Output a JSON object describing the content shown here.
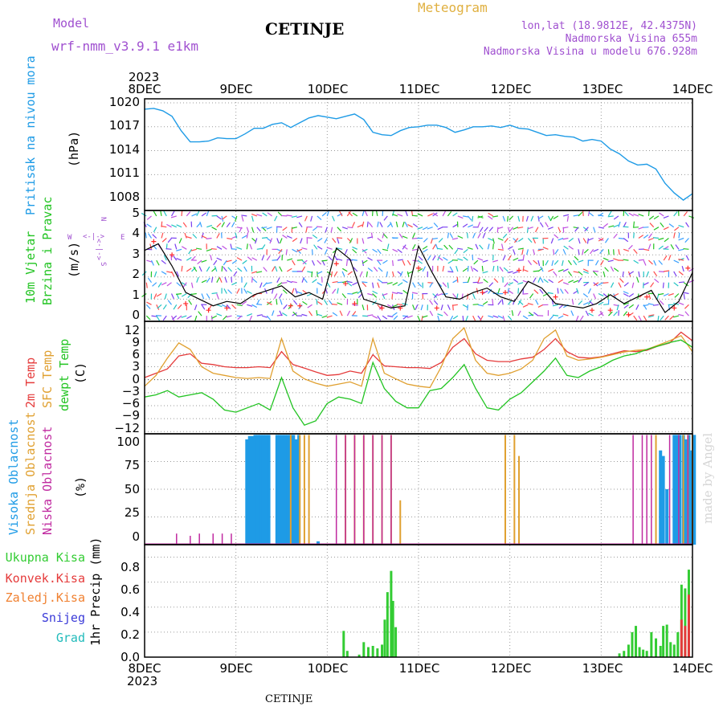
{
  "header": {
    "model_label": "Model",
    "model_name": "wrf-nmm_v3.9.1  e1km",
    "station": "CETINJE",
    "product": "Meteogram",
    "lonlat": "lon,lat (18.9812E, 42.4375N)",
    "altitude": "Nadmorska Visina 655m",
    "altitude_model": "Nadmorska Visina u modelu 676.928m",
    "footer_station": "CETINJE",
    "credit": "made by Angel"
  },
  "colors": {
    "pressure": "#1e9be6",
    "wind_speed": "#000000",
    "gust": "#ff2a2a",
    "temp2m": "#e53b3b",
    "sfc_temp": "#e0a030",
    "dewpoint": "#22c422",
    "cloud_high": "#1e9be6",
    "cloud_mid": "#e0a030",
    "cloud_low": "#c02aa0",
    "precip_total": "#33cc33",
    "precip_conv": "#e53b3b",
    "precip_frz": "#f08030",
    "precip_snow": "#3a3ad8",
    "precip_grad": "#22bbbb",
    "grid": "#9a9a9a",
    "label_purple": "#a050d0",
    "label_orange": "#e0b040"
  },
  "axes": {
    "year": "2023",
    "dates": [
      "8DEC",
      "9DEC",
      "10DEC",
      "11DEC",
      "12DEC",
      "13DEC",
      "14DEC"
    ]
  },
  "panels": {
    "pressure": {
      "label": "Pritisak na nivou mora",
      "unit": "(hPa)",
      "ticks": [
        "1020",
        "1017",
        "1014",
        "1011",
        "1008"
      ]
    },
    "wind": {
      "label1": "10m Vjetar",
      "label2": "Brzina i Pravac",
      "unit": "(m/s)",
      "ticks": [
        "5",
        "4",
        "3",
        "2",
        "1",
        "0"
      ],
      "compass_w": "W",
      "compass_e": "E",
      "compass_n": "N",
      "compass_s": "S",
      "compass_arrows": "<-|->"
    },
    "temp": {
      "label1": "2m Temp",
      "label2": "SFC Temp",
      "label3": "dewpt Temp",
      "unit": "(C)",
      "ticks": [
        "12",
        "9",
        "6",
        "3",
        "0",
        "−3",
        "−6",
        "−9",
        "−12"
      ]
    },
    "cloud": {
      "label1": "Visoka Oblacnost",
      "label2": "Srednja Oblacnost",
      "label3": "Niska Oblacnost",
      "unit": "(%)",
      "ticks": [
        "100",
        "75",
        "50",
        "25",
        "0"
      ]
    },
    "precip": {
      "legend": [
        "Ukupna Kisa",
        "Konvek.Kisa",
        "Zaledj.Kisa",
        "Snijeg",
        "Grad"
      ],
      "unit": "1hr Precip (mm)",
      "ticks": [
        "0.8",
        "0.6",
        "0.4",
        "0.2",
        "0.0"
      ]
    }
  },
  "chart_data": [
    {
      "type": "line",
      "name": "Pritisak na nivou mora",
      "ylabel": "(hPa)",
      "ylim": [
        1006.5,
        1020.5
      ],
      "x_unit": "days from 8DEC 00h",
      "x": [
        0,
        0.1,
        0.2,
        0.3,
        0.4,
        0.5,
        0.6,
        0.7,
        0.8,
        0.9,
        1.0,
        1.1,
        1.2,
        1.3,
        1.4,
        1.5,
        1.6,
        1.7,
        1.8,
        1.9,
        2.0,
        2.1,
        2.2,
        2.3,
        2.4,
        2.5,
        2.6,
        2.7,
        2.8,
        2.9,
        3.0,
        3.1,
        3.2,
        3.3,
        3.4,
        3.5,
        3.6,
        3.7,
        3.8,
        3.9,
        4.0,
        4.1,
        4.2,
        4.3,
        4.4,
        4.5,
        4.6,
        4.7,
        4.8,
        4.9,
        5.0,
        5.1,
        5.2,
        5.3,
        5.4,
        5.5,
        5.6,
        5.7,
        5.8,
        5.9,
        6.0
      ],
      "values": [
        1019.2,
        1019.3,
        1019.0,
        1018.3,
        1016.5,
        1015.1,
        1015.1,
        1015.2,
        1015.6,
        1015.5,
        1015.5,
        1016.1,
        1016.8,
        1016.8,
        1017.3,
        1017.5,
        1016.9,
        1017.5,
        1018.1,
        1018.4,
        1018.2,
        1018.0,
        1018.3,
        1018.6,
        1017.9,
        1016.3,
        1016.0,
        1015.9,
        1016.5,
        1016.9,
        1017.0,
        1017.2,
        1017.2,
        1016.9,
        1016.3,
        1016.6,
        1017.0,
        1017.0,
        1017.1,
        1016.9,
        1017.2,
        1016.8,
        1016.7,
        1016.3,
        1015.9,
        1016.0,
        1015.8,
        1015.7,
        1015.2,
        1015.4,
        1015.2,
        1014.2,
        1013.6,
        1012.7,
        1012.2,
        1012.3,
        1011.7,
        1009.9,
        1008.7,
        1007.8,
        1008.6
      ]
    },
    {
      "type": "line",
      "name": "10m Vjetar Brzina",
      "ylabel": "(m/s)",
      "ylim": [
        0,
        5
      ],
      "series": [
        {
          "name": "speed",
          "x": [
            0,
            0.15,
            0.3,
            0.45,
            0.6,
            0.75,
            0.9,
            1.05,
            1.2,
            1.35,
            1.5,
            1.65,
            1.8,
            1.95,
            2.1,
            2.25,
            2.4,
            2.55,
            2.7,
            2.85,
            3.0,
            3.15,
            3.3,
            3.45,
            3.6,
            3.75,
            3.9,
            4.05,
            4.2,
            4.35,
            4.5,
            4.65,
            4.8,
            4.95,
            5.1,
            5.25,
            5.4,
            5.55,
            5.7,
            5.85,
            6.0
          ],
          "values": [
            3.2,
            3.5,
            2.5,
            1.3,
            1.0,
            0.7,
            0.9,
            0.8,
            1.2,
            1.4,
            1.6,
            1.1,
            1.3,
            1.0,
            3.3,
            2.8,
            1.0,
            0.8,
            0.6,
            0.7,
            3.4,
            2.2,
            1.1,
            1.0,
            1.3,
            1.5,
            1.1,
            0.9,
            1.8,
            1.5,
            0.8,
            0.7,
            0.6,
            0.8,
            1.2,
            0.8,
            1.1,
            1.4,
            0.4,
            0.9,
            2.2
          ]
        },
        {
          "name": "gust",
          "x": [
            0.1,
            0.3,
            0.45,
            0.7,
            0.9,
            1.6,
            1.7,
            2.1,
            2.2,
            2.3,
            2.6,
            2.8,
            3.0,
            3.2,
            3.7,
            3.95,
            4.1,
            4.5,
            4.9,
            5.1,
            5.3,
            5.5,
            5.8,
            5.95
          ],
          "values": [
            3.6,
            3.0,
            0.8,
            0.5,
            0.6,
            0.7,
            0.7,
            2.6,
            1.7,
            0.8,
            0.6,
            0.6,
            2.4,
            0.6,
            1.3,
            1.3,
            2.3,
            1.1,
            0.5,
            0.5,
            0.3,
            1.1,
            0.6,
            2.4
          ]
        }
      ]
    },
    {
      "type": "line",
      "name": "Temperatura",
      "ylabel": "(C)",
      "ylim": [
        -12.5,
        13.5
      ],
      "x_unit": "days from 8DEC 00h",
      "x": [
        0,
        0.125,
        0.25,
        0.375,
        0.5,
        0.625,
        0.75,
        0.875,
        1.0,
        1.125,
        1.25,
        1.375,
        1.5,
        1.625,
        1.75,
        1.875,
        2.0,
        2.125,
        2.25,
        2.375,
        2.5,
        2.625,
        2.75,
        2.875,
        3.0,
        3.125,
        3.25,
        3.375,
        3.5,
        3.625,
        3.75,
        3.875,
        4.0,
        4.125,
        4.25,
        4.375,
        4.5,
        4.625,
        4.75,
        4.875,
        5.0,
        5.125,
        5.25,
        5.375,
        5.5,
        5.625,
        5.75,
        5.875,
        6.0
      ],
      "series": [
        {
          "name": "2m Temp",
          "values": [
            0.5,
            1.5,
            2.5,
            5.5,
            6.0,
            3.8,
            3.5,
            3.0,
            2.8,
            2.8,
            3.0,
            2.8,
            6.5,
            3.5,
            2.7,
            1.8,
            1.0,
            1.2,
            2.0,
            1.5,
            5.8,
            3.2,
            3.0,
            2.8,
            2.8,
            2.6,
            4.0,
            7.5,
            9.5,
            6.0,
            4.5,
            4.2,
            4.2,
            4.8,
            5.2,
            7.0,
            9.5,
            6.5,
            5.2,
            5.0,
            5.3,
            6.0,
            6.7,
            6.5,
            6.8,
            7.8,
            8.5,
            11.0,
            9.0
          ]
        },
        {
          "name": "SFC Temp",
          "values": [
            -1.5,
            1.0,
            5.0,
            8.5,
            7.0,
            3.0,
            1.5,
            1.0,
            0.5,
            0.3,
            0.5,
            0.3,
            9.5,
            2.0,
            0.2,
            -0.8,
            -1.5,
            -1.0,
            -0.5,
            -1.5,
            9.5,
            1.5,
            0.2,
            -1.0,
            -1.5,
            -1.8,
            3.0,
            9.5,
            12.0,
            4.5,
            1.5,
            1.0,
            1.5,
            2.5,
            4.5,
            9.5,
            11.5,
            5.5,
            4.5,
            4.8,
            5.2,
            5.8,
            6.4,
            6.8,
            7.0,
            8.0,
            9.0,
            10.2,
            6.5
          ]
        },
        {
          "name": "dewpt Temp",
          "values": [
            -4.0,
            -3.5,
            -2.5,
            -4.0,
            -3.5,
            -3.0,
            -4.5,
            -7.0,
            -7.5,
            -6.5,
            -5.5,
            -7.0,
            0.5,
            -6.5,
            -10.5,
            -9.5,
            -5.5,
            -4.0,
            -4.5,
            -5.5,
            4.0,
            -2.0,
            -5.0,
            -6.5,
            -6.5,
            -2.5,
            -2.0,
            0.5,
            3.5,
            -2.0,
            -6.5,
            -7.0,
            -4.5,
            -3.0,
            -0.5,
            2.0,
            5.0,
            1.0,
            0.5,
            2.0,
            3.0,
            4.5,
            5.5,
            6.0,
            7.0,
            7.8,
            8.6,
            9.2,
            7.5
          ]
        }
      ]
    },
    {
      "type": "bar",
      "name": "Oblacnost",
      "ylabel": "(%)",
      "ylim": [
        0,
        100
      ],
      "series": [
        {
          "name": "Visoka Oblacnost",
          "x": [
            1.12,
            1.15,
            1.18,
            1.21,
            1.24,
            1.27,
            1.3,
            1.33,
            1.36,
            1.45,
            1.48,
            1.51,
            1.54,
            1.57,
            1.6,
            1.63,
            1.66,
            1.69,
            1.9,
            5.65,
            5.68,
            5.72,
            5.8,
            5.83,
            5.86,
            5.9,
            5.93,
            5.96,
            5.99,
            6.02
          ],
          "values": [
            95,
            98,
            98,
            99,
            99,
            99,
            99,
            99,
            99,
            99,
            99,
            99,
            99,
            99,
            99,
            99,
            95,
            99,
            3,
            85,
            80,
            50,
            99,
            99,
            99,
            99,
            95,
            99,
            85,
            99
          ]
        },
        {
          "name": "Srednja Oblacnost",
          "x": [
            1.6,
            1.7,
            1.75,
            1.8,
            2.2,
            2.3,
            2.4,
            2.5,
            2.6,
            2.7,
            2.8,
            3.95,
            4.05,
            4.1,
            5.6,
            5.9,
            5.95,
            6.0
          ],
          "values": [
            99,
            99,
            99,
            99,
            99,
            99,
            99,
            99,
            99,
            99,
            40,
            99,
            99,
            80,
            99,
            99,
            99,
            99
          ]
        },
        {
          "name": "Niska Oblacnost",
          "x": [
            0.35,
            0.5,
            0.6,
            0.75,
            0.85,
            0.95,
            2.1,
            2.2,
            2.3,
            2.4,
            2.5,
            2.6,
            2.7,
            5.35,
            5.45,
            5.5,
            5.55,
            5.75,
            5.85,
            5.95
          ],
          "values": [
            10,
            8,
            10,
            10,
            10,
            10,
            99,
            99,
            99,
            99,
            99,
            99,
            99,
            99,
            99,
            99,
            99,
            99,
            99,
            99
          ]
        }
      ]
    },
    {
      "type": "bar",
      "name": "1hr Precip",
      "ylabel": "1hr Precip (mm)",
      "ylim": [
        0,
        0.9
      ],
      "series": [
        {
          "name": "Ukupna Kisa",
          "x": [
            2.18,
            2.22,
            2.35,
            2.4,
            2.45,
            2.5,
            2.55,
            2.6,
            2.63,
            2.66,
            2.7,
            2.72,
            2.75,
            5.2,
            5.25,
            5.3,
            5.34,
            5.38,
            5.42,
            5.46,
            5.5,
            5.55,
            5.6,
            5.65,
            5.68,
            5.72,
            5.76,
            5.8,
            5.84,
            5.88,
            5.92,
            5.96
          ],
          "values": [
            0.21,
            0.05,
            0.02,
            0.12,
            0.08,
            0.09,
            0.07,
            0.1,
            0.3,
            0.52,
            0.69,
            0.45,
            0.24,
            0.03,
            0.05,
            0.1,
            0.2,
            0.25,
            0.08,
            0.06,
            0.05,
            0.2,
            0.15,
            0.09,
            0.25,
            0.26,
            0.12,
            0.1,
            0.2,
            0.58,
            0.55,
            0.7
          ]
        },
        {
          "name": "Konvek.Kisa",
          "x": [
            5.88,
            5.92,
            5.96
          ],
          "values": [
            0.3,
            0.25,
            0.5
          ]
        }
      ]
    }
  ]
}
